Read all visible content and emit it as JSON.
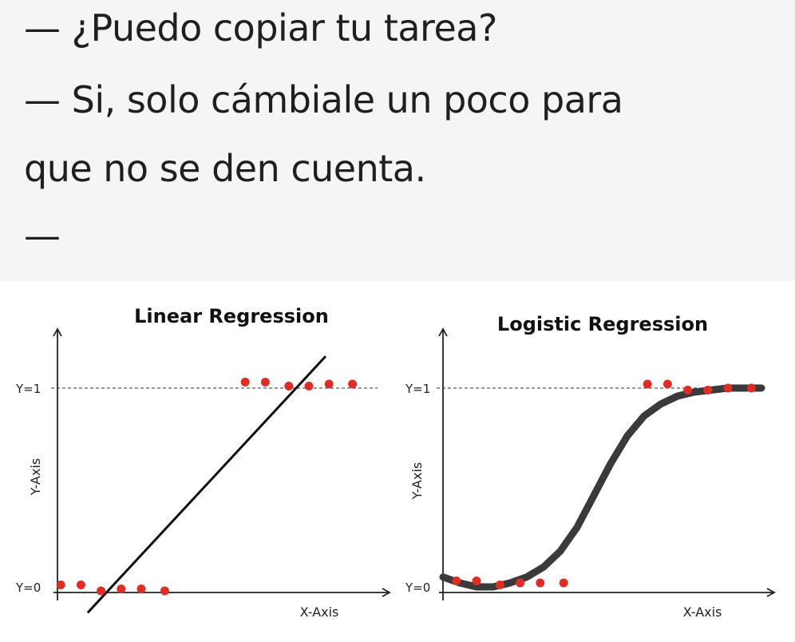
{
  "meme": {
    "lines": [
      "— ¿Puedo copiar tu tarea?",
      "— Si, solo cámbiale un poco para",
      "que no se den cuenta.",
      "—"
    ]
  },
  "chart_data": [
    {
      "type": "scatter",
      "title": "Linear Regression",
      "xlabel": "X-Axis",
      "ylabel": "Y-Axis",
      "y_tick_labels": [
        "Y=0",
        "Y=1"
      ],
      "ylim": [
        -0.1,
        1.3
      ],
      "xlim": [
        0,
        1
      ],
      "points": [
        {
          "x": 0.01,
          "y": 0.01
        },
        {
          "x": 0.07,
          "y": 0.01
        },
        {
          "x": 0.13,
          "y": -0.02
        },
        {
          "x": 0.19,
          "y": -0.01
        },
        {
          "x": 0.25,
          "y": -0.01
        },
        {
          "x": 0.32,
          "y": -0.02
        },
        {
          "x": 0.56,
          "y": 1.03
        },
        {
          "x": 0.62,
          "y": 1.03
        },
        {
          "x": 0.69,
          "y": 1.01
        },
        {
          "x": 0.75,
          "y": 1.01
        },
        {
          "x": 0.81,
          "y": 1.02
        },
        {
          "x": 0.88,
          "y": 1.02
        }
      ],
      "fit_line": {
        "x": [
          0.09,
          0.8
        ],
        "y": [
          -0.13,
          1.16
        ]
      }
    },
    {
      "type": "scatter",
      "title": "Logistic Regression",
      "xlabel": "X-Axis",
      "ylabel": "Y-Axis",
      "y_tick_labels": [
        "Y=0",
        "Y=1"
      ],
      "ylim": [
        -0.1,
        1.3
      ],
      "xlim": [
        0,
        1
      ],
      "points": [
        {
          "x": 0.04,
          "y": 0.03
        },
        {
          "x": 0.1,
          "y": 0.03
        },
        {
          "x": 0.17,
          "y": 0.01
        },
        {
          "x": 0.23,
          "y": 0.02
        },
        {
          "x": 0.29,
          "y": 0.02
        },
        {
          "x": 0.36,
          "y": 0.02
        },
        {
          "x": 0.61,
          "y": 1.02
        },
        {
          "x": 0.67,
          "y": 1.02
        },
        {
          "x": 0.73,
          "y": 0.99
        },
        {
          "x": 0.79,
          "y": 0.99
        },
        {
          "x": 0.85,
          "y": 1.0
        },
        {
          "x": 0.92,
          "y": 1.0
        }
      ],
      "curve": {
        "x": [
          0.0,
          0.05,
          0.1,
          0.15,
          0.2,
          0.25,
          0.3,
          0.35,
          0.4,
          0.45,
          0.5,
          0.55,
          0.6,
          0.65,
          0.7,
          0.75,
          0.8,
          0.85,
          0.9,
          0.95
        ],
        "y": [
          0.05,
          0.02,
          0.0,
          0.0,
          0.02,
          0.05,
          0.1,
          0.18,
          0.3,
          0.46,
          0.62,
          0.76,
          0.86,
          0.92,
          0.96,
          0.98,
          0.99,
          1.0,
          1.0,
          1.0
        ]
      }
    }
  ],
  "colors": {
    "point": "#dd2e26",
    "line": "#111111",
    "curve": "#3a3a3a",
    "axis": "#222222",
    "meme_bg": "#f5f5f7",
    "meme_text": "#1f1f1f"
  }
}
